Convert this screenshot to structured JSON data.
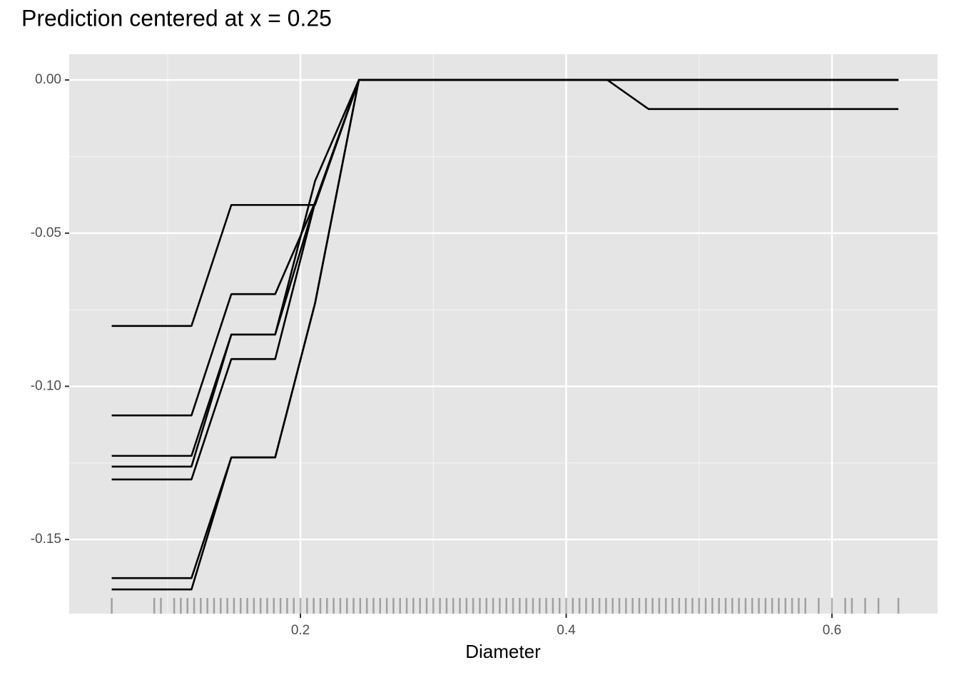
{
  "chart_data": {
    "type": "line",
    "title": "Prediction centered at x = 0.25",
    "xlabel": "Diameter",
    "x": [
      0.058,
      0.118,
      0.148,
      0.181,
      0.211,
      0.244,
      0.431,
      0.462,
      0.65
    ],
    "series": [
      {
        "color": "#000000",
        "values": [
          -0.0803,
          -0.0803,
          -0.0408,
          -0.0408,
          -0.0408,
          0,
          0,
          -0.0095,
          -0.0095
        ]
      },
      {
        "color": "#000000",
        "values": [
          -0.1095,
          -0.1095,
          -0.0699,
          -0.0699,
          -0.04,
          0,
          0,
          0,
          0
        ]
      },
      {
        "color": "#000000",
        "values": [
          -0.1227,
          -0.1227,
          -0.0831,
          -0.0831,
          -0.033,
          0,
          0,
          0,
          0
        ]
      },
      {
        "color": "#000000",
        "values": [
          -0.1262,
          -0.1262,
          -0.0831,
          -0.0831,
          -0.04,
          0,
          0,
          0,
          0
        ]
      },
      {
        "color": "#000000",
        "values": [
          -0.1304,
          -0.1304,
          -0.0911,
          -0.0911,
          -0.04,
          0,
          0,
          0,
          0
        ]
      },
      {
        "color": "#000000",
        "values": [
          -0.1626,
          -0.1626,
          -0.1232,
          -0.1232,
          -0.0729,
          0,
          0,
          0,
          0
        ]
      },
      {
        "color": "#000000",
        "values": [
          -0.1663,
          -0.1663,
          -0.1232,
          -0.1232,
          -0.0729,
          0,
          0,
          0,
          0
        ]
      }
    ],
    "rug": {
      "color": "#000000",
      "values": [
        0.058,
        0.09,
        0.095,
        0.105,
        0.11,
        0.115,
        0.12,
        0.125,
        0.13,
        0.135,
        0.14,
        0.145,
        0.15,
        0.155,
        0.16,
        0.165,
        0.17,
        0.175,
        0.18,
        0.185,
        0.19,
        0.195,
        0.2,
        0.205,
        0.21,
        0.215,
        0.22,
        0.225,
        0.23,
        0.235,
        0.24,
        0.245,
        0.25,
        0.255,
        0.26,
        0.265,
        0.27,
        0.275,
        0.28,
        0.285,
        0.29,
        0.295,
        0.3,
        0.305,
        0.31,
        0.315,
        0.32,
        0.325,
        0.33,
        0.335,
        0.34,
        0.345,
        0.35,
        0.355,
        0.36,
        0.365,
        0.37,
        0.375,
        0.38,
        0.385,
        0.39,
        0.395,
        0.4,
        0.405,
        0.41,
        0.415,
        0.42,
        0.425,
        0.43,
        0.435,
        0.44,
        0.445,
        0.45,
        0.455,
        0.46,
        0.465,
        0.47,
        0.475,
        0.48,
        0.485,
        0.49,
        0.495,
        0.5,
        0.505,
        0.51,
        0.515,
        0.52,
        0.525,
        0.53,
        0.535,
        0.54,
        0.545,
        0.55,
        0.555,
        0.56,
        0.565,
        0.57,
        0.575,
        0.58,
        0.59,
        0.6,
        0.61,
        0.615,
        0.625,
        0.635,
        0.65
      ]
    },
    "xlim": [
      0.026,
      0.6795
    ],
    "ylim": [
      -0.1742,
      0.0084
    ],
    "xticks": [
      0.2,
      0.4,
      0.6
    ],
    "yticks": [
      {
        "value": 0,
        "label": "0.00"
      },
      {
        "value": -0.05,
        "label": "-0.05"
      },
      {
        "value": -0.1,
        "label": "-0.10"
      },
      {
        "value": -0.15,
        "label": "-0.15"
      }
    ],
    "x_minor_grid": [
      0.1,
      0.3,
      0.5
    ],
    "y_minor_grid": [
      -0.025,
      -0.075,
      -0.125
    ],
    "grid": true
  }
}
